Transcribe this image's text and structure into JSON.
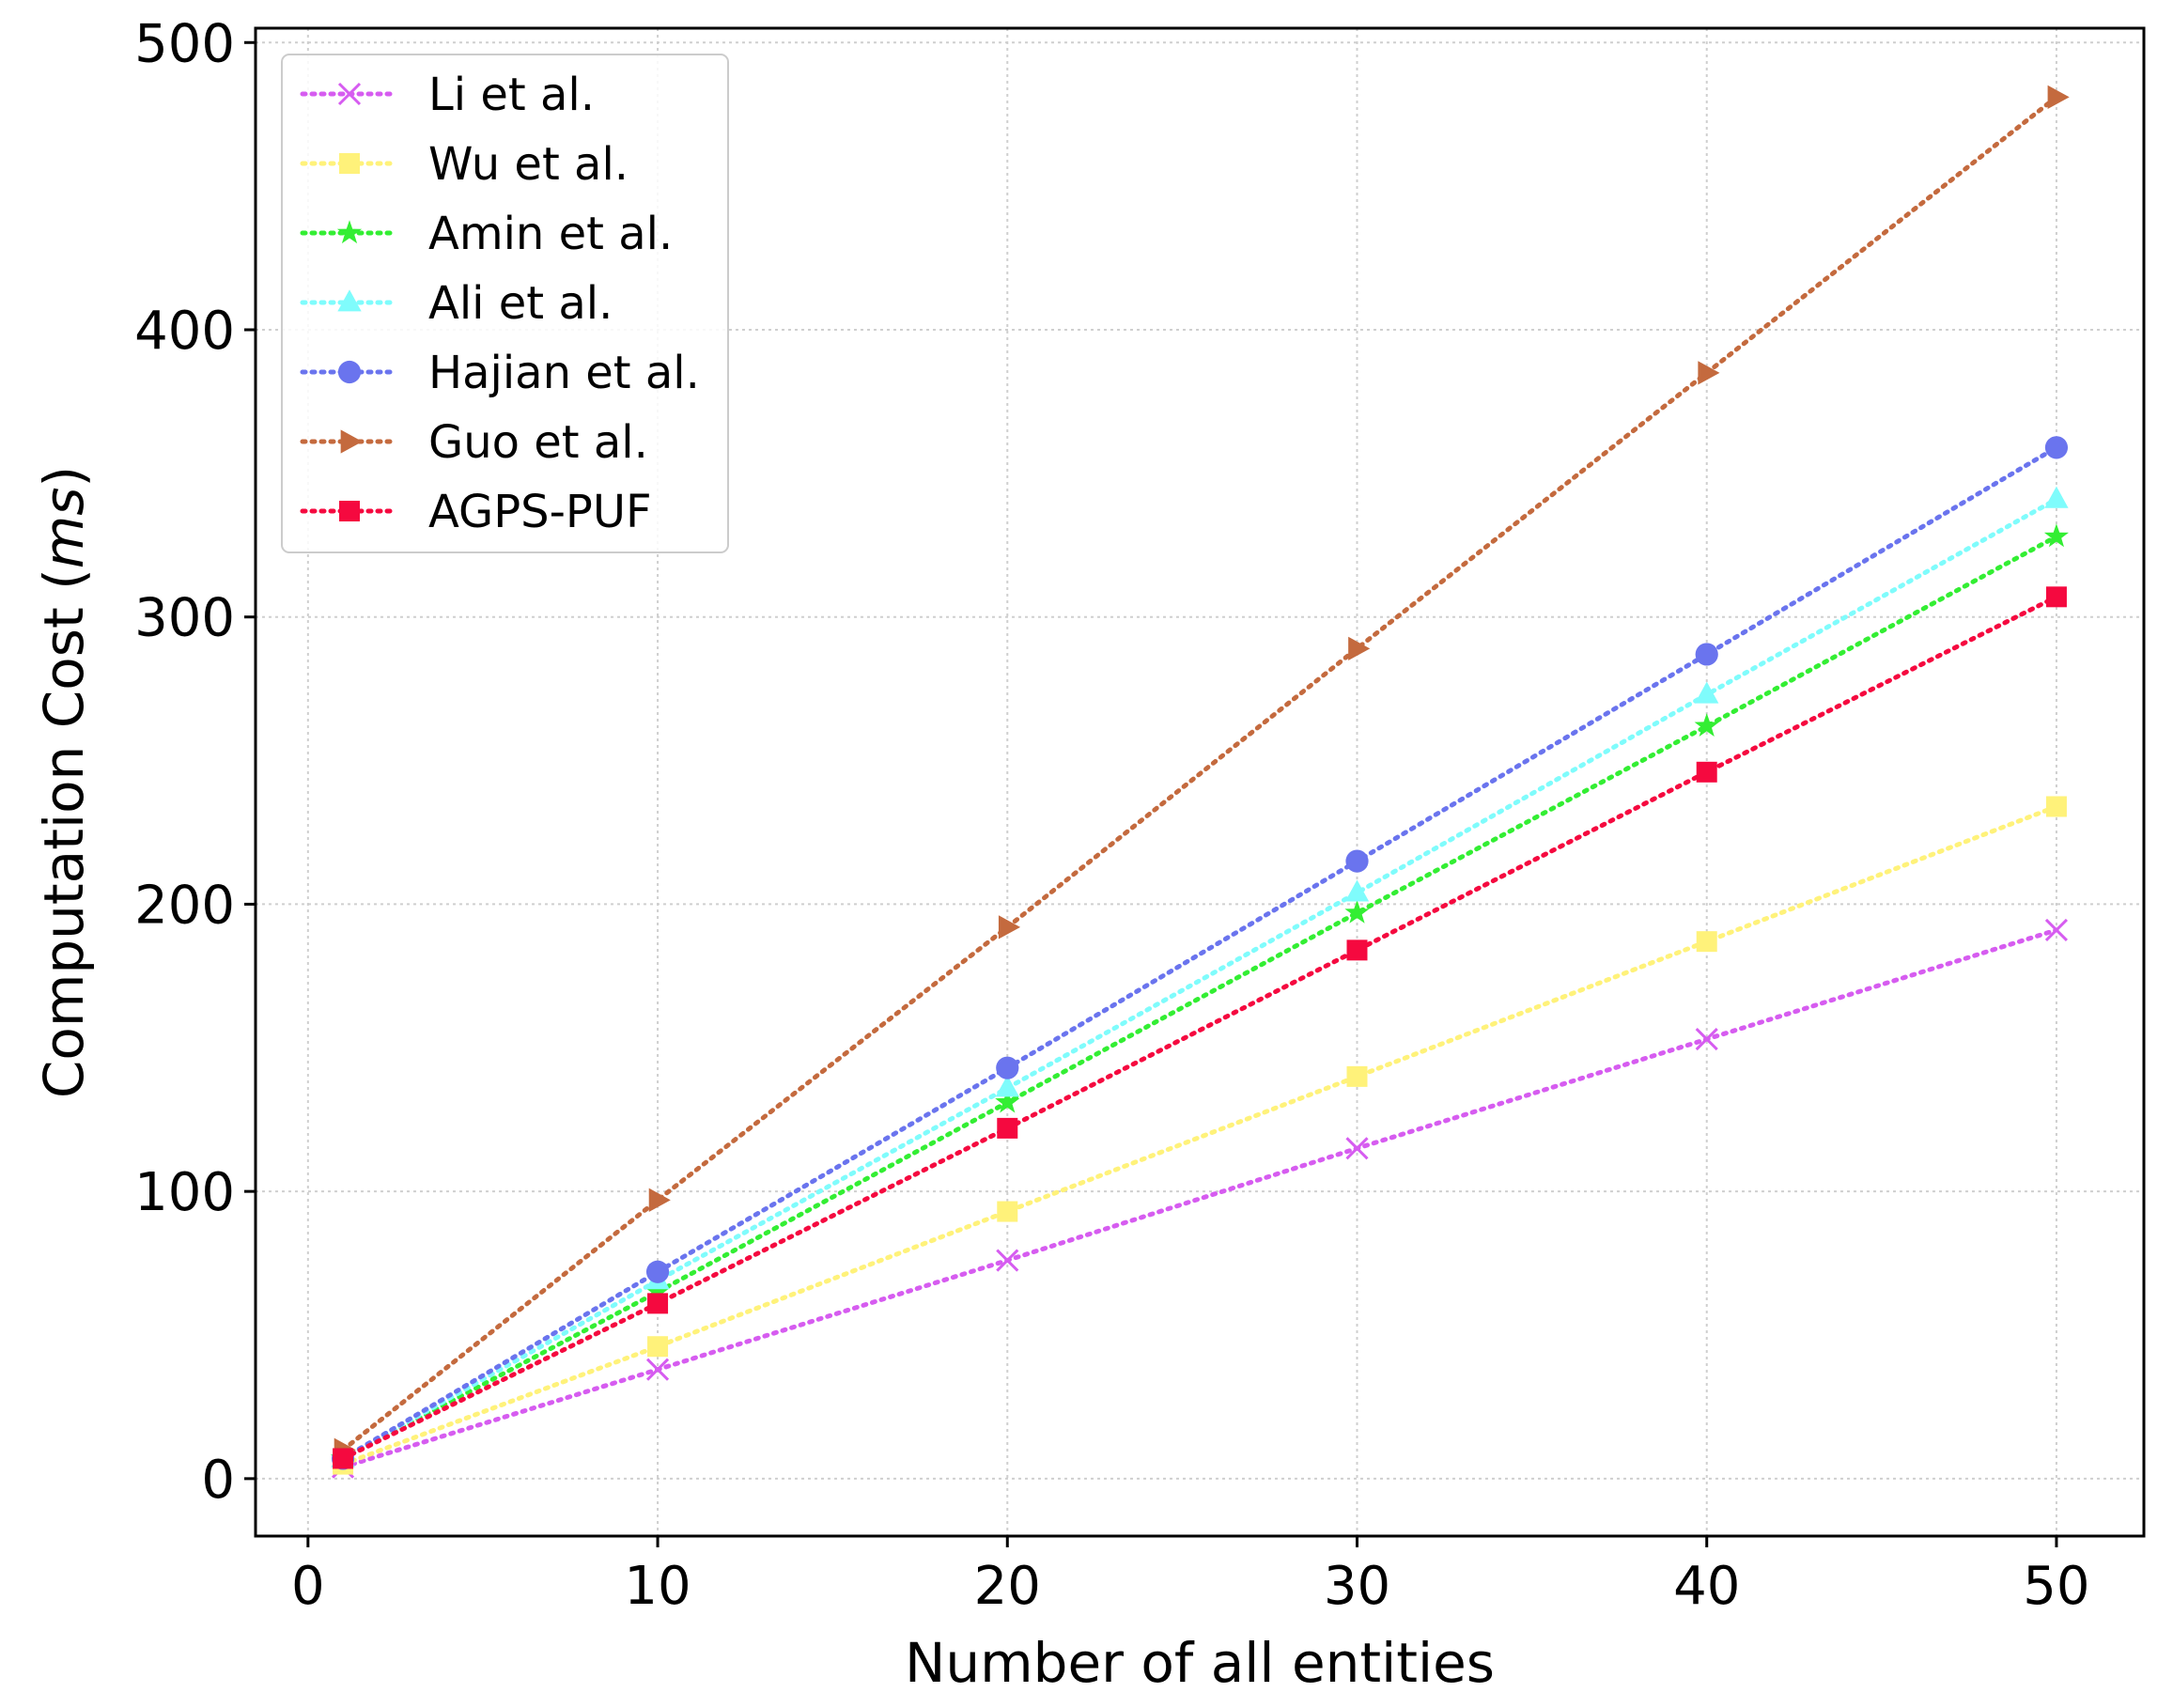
{
  "chart_data": {
    "type": "line",
    "title": "",
    "xlabel": "Number of all entities",
    "ylabel_main": "Computation Cost (",
    "ylabel_unit": "ms",
    "ylabel_end": ")",
    "xlim": [
      -1.5,
      52.5
    ],
    "ylim": [
      -20,
      505
    ],
    "xticks": [
      0,
      10,
      20,
      30,
      40,
      50
    ],
    "yticks": [
      0,
      100,
      200,
      300,
      400,
      500
    ],
    "grid": true,
    "legend_position": "top-left",
    "x": [
      1,
      10,
      20,
      30,
      40,
      50
    ],
    "series": [
      {
        "name": "Li et al.",
        "color": "#d65cf0",
        "marker": "x",
        "values": [
          4,
          38,
          76,
          115,
          153,
          191
        ]
      },
      {
        "name": "Wu et al.",
        "color": "#fff27a",
        "marker": "square",
        "values": [
          5,
          46,
          93,
          140,
          187,
          234
        ]
      },
      {
        "name": "Amin et al.",
        "color": "#33ee33",
        "marker": "star",
        "values": [
          7,
          65,
          131,
          197,
          262,
          328
        ]
      },
      {
        "name": "Ali et al.",
        "color": "#7ffcfc",
        "marker": "triangle-up",
        "values": [
          7,
          69,
          136,
          204,
          273,
          341
        ]
      },
      {
        "name": "Hajian et al.",
        "color": "#6a74ee",
        "marker": "circle",
        "values": [
          7,
          72,
          143,
          215,
          287,
          359
        ]
      },
      {
        "name": "Guo et al.",
        "color": "#c46a3e",
        "marker": "triangle-right",
        "values": [
          10,
          97,
          192,
          289,
          385,
          481
        ]
      },
      {
        "name": "AGPS-PUF",
        "color": "#f5093f",
        "marker": "square",
        "values": [
          7,
          61,
          122,
          184,
          246,
          307
        ]
      }
    ]
  }
}
